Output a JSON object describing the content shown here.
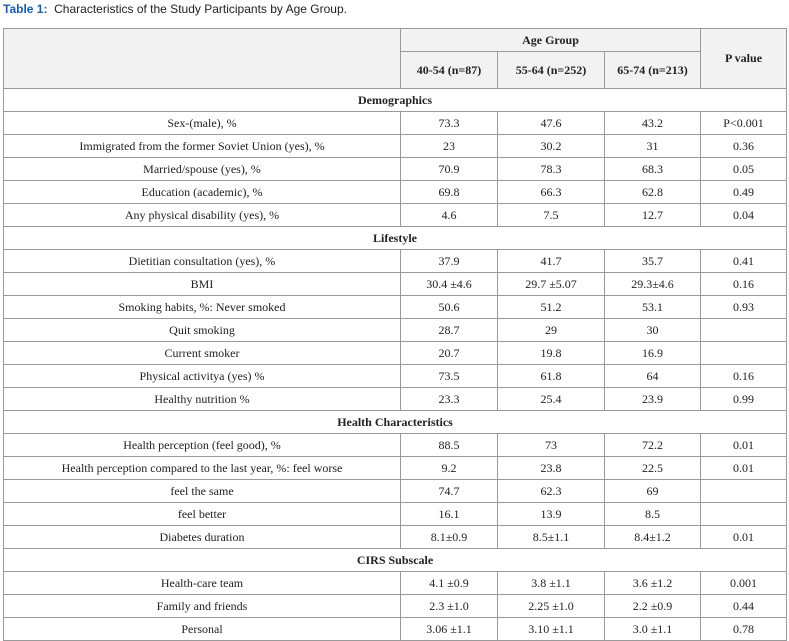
{
  "caption": {
    "label": "Table 1:",
    "text": "Characteristics of the Study Participants by Age Group."
  },
  "table": {
    "header": {
      "group": "Age Group",
      "p_value": "P value",
      "columns": [
        "40-54 (n=87)",
        "55-64 (n=252)",
        "65-74 (n=213)"
      ]
    },
    "sections": [
      {
        "title": "Demographics",
        "rows": [
          [
            "Sex-(male), %",
            "73.3",
            "47.6",
            "43.2",
            "P<0.001"
          ],
          [
            "Immigrated from the former Soviet Union (yes), %",
            "23",
            "30.2",
            "31",
            "0.36"
          ],
          [
            "Married/spouse (yes), %",
            "70.9",
            "78.3",
            "68.3",
            "0.05"
          ],
          [
            "Education (academic), %",
            "69.8",
            "66.3",
            "62.8",
            "0.49"
          ],
          [
            "Any physical disability (yes), %",
            "4.6",
            "7.5",
            "12.7",
            "0.04"
          ]
        ]
      },
      {
        "title": "Lifestyle",
        "rows": [
          [
            "Dietitian consultation (yes), %",
            "37.9",
            "41.7",
            "35.7",
            "0.41"
          ],
          [
            "BMI",
            "30.4 ±4.6",
            "29.7 ±5.07",
            "29.3±4.6",
            "0.16"
          ],
          [
            "Smoking habits, %: Never smoked",
            "50.6",
            "51.2",
            "53.1",
            "0.93"
          ],
          [
            "Quit smoking",
            "28.7",
            "29",
            "30"
          ],
          [
            "Current smoker",
            "20.7",
            "19.8",
            "16.9"
          ],
          [
            "Physical activitya (yes) %",
            "73.5",
            "61.8",
            "64",
            "0.16"
          ],
          [
            "Healthy nutrition %",
            "23.3",
            "25.4",
            "23.9",
            "0.99"
          ]
        ]
      },
      {
        "title": "Health Characteristics",
        "rows": [
          [
            "Health perception (feel good), %",
            "88.5",
            "73",
            "72.2",
            "0.01"
          ],
          [
            "Health perception compared to the last year, %: feel worse",
            "9.2",
            "23.8",
            "22.5",
            "0.01"
          ],
          [
            "feel the same",
            "74.7",
            "62.3",
            "69"
          ],
          [
            "feel better",
            "16.1",
            "13.9",
            "8.5"
          ],
          [
            "Diabetes duration",
            "8.1±0.9",
            "8.5±1.1",
            "8.4±1.2",
            "0.01"
          ]
        ]
      },
      {
        "title": "CIRS Subscale",
        "rows": [
          [
            "Health-care team",
            "4.1 ±0.9",
            "3.8 ±1.1",
            "3.6 ±1.2",
            "0.001"
          ],
          [
            "Family and friends",
            "2.3 ±1.0",
            "2.25 ±1.0",
            "2.2 ±0.9",
            "0.44"
          ],
          [
            "Personal",
            "3.06 ±1.1",
            "3.10 ±1.1",
            "3.0 ±1.1",
            "0.78"
          ]
        ]
      }
    ]
  }
}
